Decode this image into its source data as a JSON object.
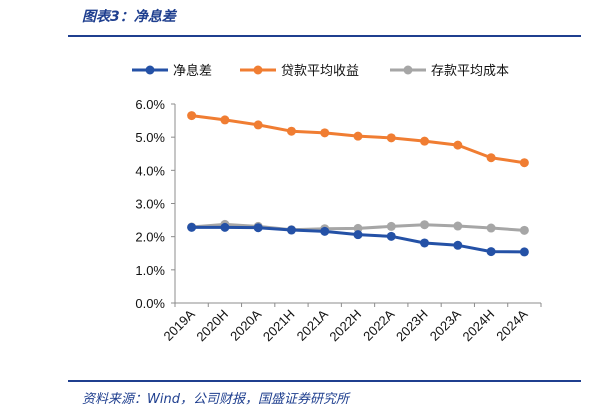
{
  "figure_title": "图表3：净息差",
  "source": "资料来源：Wind，公司财报，国盛证券研究所",
  "colors": {
    "accent": "#1f3f8f"
  },
  "chart_data": {
    "type": "line",
    "categories": [
      "2019A",
      "2020H",
      "2020A",
      "2021H",
      "2021A",
      "2022H",
      "2022A",
      "2023H",
      "2023A",
      "2024H",
      "2024A"
    ],
    "y_ticks": [
      "0.0%",
      "1.0%",
      "2.0%",
      "3.0%",
      "4.0%",
      "5.0%",
      "6.0%"
    ],
    "ylim": [
      0,
      6
    ],
    "grid": false,
    "legend_position": "top",
    "series": [
      {
        "name": "净息差",
        "color": "#2451a6",
        "values": [
          2.28,
          2.28,
          2.27,
          2.2,
          2.16,
          2.06,
          2.01,
          1.81,
          1.74,
          1.55,
          1.54
        ]
      },
      {
        "name": "贷款平均收益",
        "color": "#f07d32",
        "values": [
          5.65,
          5.52,
          5.37,
          5.18,
          5.13,
          5.03,
          4.98,
          4.88,
          4.76,
          4.38,
          4.23
        ]
      },
      {
        "name": "存款平均成本",
        "color": "#a6a6a6",
        "values": [
          2.29,
          2.37,
          2.31,
          2.21,
          2.24,
          2.25,
          2.31,
          2.36,
          2.32,
          2.26,
          2.19
        ]
      }
    ]
  }
}
